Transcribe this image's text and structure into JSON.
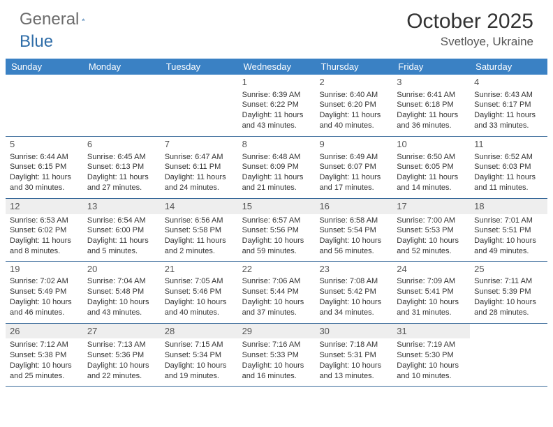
{
  "brand": {
    "general": "General",
    "blue": "Blue"
  },
  "title": "October 2025",
  "location": "Svetloye, Ukraine",
  "colors": {
    "header_bg": "#3a81c4",
    "header_text": "#ffffff",
    "rule": "#3a6a9a",
    "alt_bg": "#eeeeee",
    "text": "#333333",
    "logo_gray": "#6b6b6b",
    "logo_blue": "#2f6da8"
  },
  "day_names": [
    "Sunday",
    "Monday",
    "Tuesday",
    "Wednesday",
    "Thursday",
    "Friday",
    "Saturday"
  ],
  "weeks": [
    {
      "alt": false,
      "days": [
        null,
        null,
        null,
        {
          "n": "1",
          "sr": "Sunrise: 6:39 AM",
          "ss": "Sunset: 6:22 PM",
          "dl1": "Daylight: 11 hours",
          "dl2": "and 43 minutes."
        },
        {
          "n": "2",
          "sr": "Sunrise: 6:40 AM",
          "ss": "Sunset: 6:20 PM",
          "dl1": "Daylight: 11 hours",
          "dl2": "and 40 minutes."
        },
        {
          "n": "3",
          "sr": "Sunrise: 6:41 AM",
          "ss": "Sunset: 6:18 PM",
          "dl1": "Daylight: 11 hours",
          "dl2": "and 36 minutes."
        },
        {
          "n": "4",
          "sr": "Sunrise: 6:43 AM",
          "ss": "Sunset: 6:17 PM",
          "dl1": "Daylight: 11 hours",
          "dl2": "and 33 minutes."
        }
      ]
    },
    {
      "alt": false,
      "days": [
        {
          "n": "5",
          "sr": "Sunrise: 6:44 AM",
          "ss": "Sunset: 6:15 PM",
          "dl1": "Daylight: 11 hours",
          "dl2": "and 30 minutes."
        },
        {
          "n": "6",
          "sr": "Sunrise: 6:45 AM",
          "ss": "Sunset: 6:13 PM",
          "dl1": "Daylight: 11 hours",
          "dl2": "and 27 minutes."
        },
        {
          "n": "7",
          "sr": "Sunrise: 6:47 AM",
          "ss": "Sunset: 6:11 PM",
          "dl1": "Daylight: 11 hours",
          "dl2": "and 24 minutes."
        },
        {
          "n": "8",
          "sr": "Sunrise: 6:48 AM",
          "ss": "Sunset: 6:09 PM",
          "dl1": "Daylight: 11 hours",
          "dl2": "and 21 minutes."
        },
        {
          "n": "9",
          "sr": "Sunrise: 6:49 AM",
          "ss": "Sunset: 6:07 PM",
          "dl1": "Daylight: 11 hours",
          "dl2": "and 17 minutes."
        },
        {
          "n": "10",
          "sr": "Sunrise: 6:50 AM",
          "ss": "Sunset: 6:05 PM",
          "dl1": "Daylight: 11 hours",
          "dl2": "and 14 minutes."
        },
        {
          "n": "11",
          "sr": "Sunrise: 6:52 AM",
          "ss": "Sunset: 6:03 PM",
          "dl1": "Daylight: 11 hours",
          "dl2": "and 11 minutes."
        }
      ]
    },
    {
      "alt": true,
      "days": [
        {
          "n": "12",
          "sr": "Sunrise: 6:53 AM",
          "ss": "Sunset: 6:02 PM",
          "dl1": "Daylight: 11 hours",
          "dl2": "and 8 minutes."
        },
        {
          "n": "13",
          "sr": "Sunrise: 6:54 AM",
          "ss": "Sunset: 6:00 PM",
          "dl1": "Daylight: 11 hours",
          "dl2": "and 5 minutes."
        },
        {
          "n": "14",
          "sr": "Sunrise: 6:56 AM",
          "ss": "Sunset: 5:58 PM",
          "dl1": "Daylight: 11 hours",
          "dl2": "and 2 minutes."
        },
        {
          "n": "15",
          "sr": "Sunrise: 6:57 AM",
          "ss": "Sunset: 5:56 PM",
          "dl1": "Daylight: 10 hours",
          "dl2": "and 59 minutes."
        },
        {
          "n": "16",
          "sr": "Sunrise: 6:58 AM",
          "ss": "Sunset: 5:54 PM",
          "dl1": "Daylight: 10 hours",
          "dl2": "and 56 minutes."
        },
        {
          "n": "17",
          "sr": "Sunrise: 7:00 AM",
          "ss": "Sunset: 5:53 PM",
          "dl1": "Daylight: 10 hours",
          "dl2": "and 52 minutes."
        },
        {
          "n": "18",
          "sr": "Sunrise: 7:01 AM",
          "ss": "Sunset: 5:51 PM",
          "dl1": "Daylight: 10 hours",
          "dl2": "and 49 minutes."
        }
      ]
    },
    {
      "alt": false,
      "days": [
        {
          "n": "19",
          "sr": "Sunrise: 7:02 AM",
          "ss": "Sunset: 5:49 PM",
          "dl1": "Daylight: 10 hours",
          "dl2": "and 46 minutes."
        },
        {
          "n": "20",
          "sr": "Sunrise: 7:04 AM",
          "ss": "Sunset: 5:48 PM",
          "dl1": "Daylight: 10 hours",
          "dl2": "and 43 minutes."
        },
        {
          "n": "21",
          "sr": "Sunrise: 7:05 AM",
          "ss": "Sunset: 5:46 PM",
          "dl1": "Daylight: 10 hours",
          "dl2": "and 40 minutes."
        },
        {
          "n": "22",
          "sr": "Sunrise: 7:06 AM",
          "ss": "Sunset: 5:44 PM",
          "dl1": "Daylight: 10 hours",
          "dl2": "and 37 minutes."
        },
        {
          "n": "23",
          "sr": "Sunrise: 7:08 AM",
          "ss": "Sunset: 5:42 PM",
          "dl1": "Daylight: 10 hours",
          "dl2": "and 34 minutes."
        },
        {
          "n": "24",
          "sr": "Sunrise: 7:09 AM",
          "ss": "Sunset: 5:41 PM",
          "dl1": "Daylight: 10 hours",
          "dl2": "and 31 minutes."
        },
        {
          "n": "25",
          "sr": "Sunrise: 7:11 AM",
          "ss": "Sunset: 5:39 PM",
          "dl1": "Daylight: 10 hours",
          "dl2": "and 28 minutes."
        }
      ]
    },
    {
      "alt": true,
      "days": [
        {
          "n": "26",
          "sr": "Sunrise: 7:12 AM",
          "ss": "Sunset: 5:38 PM",
          "dl1": "Daylight: 10 hours",
          "dl2": "and 25 minutes."
        },
        {
          "n": "27",
          "sr": "Sunrise: 7:13 AM",
          "ss": "Sunset: 5:36 PM",
          "dl1": "Daylight: 10 hours",
          "dl2": "and 22 minutes."
        },
        {
          "n": "28",
          "sr": "Sunrise: 7:15 AM",
          "ss": "Sunset: 5:34 PM",
          "dl1": "Daylight: 10 hours",
          "dl2": "and 19 minutes."
        },
        {
          "n": "29",
          "sr": "Sunrise: 7:16 AM",
          "ss": "Sunset: 5:33 PM",
          "dl1": "Daylight: 10 hours",
          "dl2": "and 16 minutes."
        },
        {
          "n": "30",
          "sr": "Sunrise: 7:18 AM",
          "ss": "Sunset: 5:31 PM",
          "dl1": "Daylight: 10 hours",
          "dl2": "and 13 minutes."
        },
        {
          "n": "31",
          "sr": "Sunrise: 7:19 AM",
          "ss": "Sunset: 5:30 PM",
          "dl1": "Daylight: 10 hours",
          "dl2": "and 10 minutes."
        },
        null
      ]
    }
  ]
}
